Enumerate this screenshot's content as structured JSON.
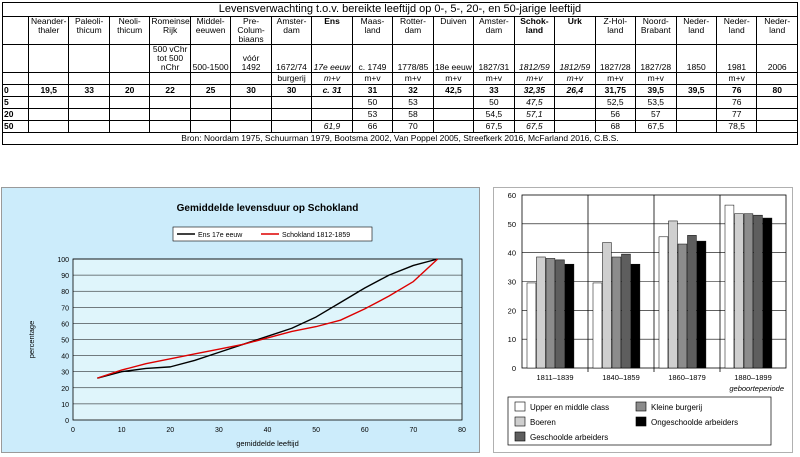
{
  "table": {
    "title": "Levensverwachting t.o.v. bereikte leeftijd op 0-, 5-, 20-, en 50-jarige leeftijd",
    "columns": [
      {
        "head": "Neander-thaler",
        "sub": "",
        "unit": "",
        "style": ""
      },
      {
        "head": "Paleoli-thicum",
        "sub": "",
        "unit": "",
        "style": ""
      },
      {
        "head": "Neoli-thicum",
        "sub": "",
        "unit": "",
        "style": ""
      },
      {
        "head": "Romeinse Rijk",
        "sub": "500 vChr tot 500 nChr",
        "unit": "",
        "style": ""
      },
      {
        "head": "Middel-eeuwen",
        "sub": "500-1500",
        "unit": "",
        "style": ""
      },
      {
        "head": "Pre-Colum-biaans",
        "sub": "vóór 1492",
        "unit": "",
        "style": ""
      },
      {
        "head": "Amster-dam",
        "sub": "1672/74",
        "unit": "burgerij",
        "style": ""
      },
      {
        "head": "Ens",
        "sub": "17e eeuw",
        "unit": "m+v",
        "style": "bold",
        "substyle": "italic",
        "unitstyle": "italic"
      },
      {
        "head": "Maas-land",
        "sub": "c. 1749",
        "unit": "m+v",
        "style": ""
      },
      {
        "head": "Rotter-dam",
        "sub": "1778/85",
        "unit": "m+v",
        "style": ""
      },
      {
        "head": "Duiven",
        "sub": "18e eeuw",
        "unit": "m+v",
        "style": ""
      },
      {
        "head": "Amster-dam",
        "sub": "1827/31",
        "unit": "m+v",
        "style": ""
      },
      {
        "head": "Schok-land",
        "sub": "1812/59",
        "unit": "m+v",
        "style": "bold",
        "substyle": "italic",
        "unitstyle": "italic"
      },
      {
        "head": "Urk",
        "sub": "1812/59",
        "unit": "m+v",
        "style": "bold",
        "substyle": "italic",
        "unitstyle": "italic"
      },
      {
        "head": "Z-Hol-land",
        "sub": "1827/28",
        "unit": "m+v",
        "style": ""
      },
      {
        "head": "Noord-Brabant",
        "sub": "1827/28",
        "unit": "m+v",
        "style": ""
      },
      {
        "head": "Neder-land",
        "sub": "1850",
        "unit": "",
        "style": ""
      },
      {
        "head": "Neder-land",
        "sub": "1981",
        "unit": "m+v",
        "style": ""
      },
      {
        "head": "Neder-land",
        "sub": "2006",
        "unit": "",
        "style": ""
      }
    ],
    "rows": [
      {
        "label": "0",
        "cells": [
          "19,5",
          "33",
          "20",
          "22",
          "25",
          "30",
          "30",
          "c. 31",
          "31",
          "32",
          "42,5",
          "33",
          "32,35",
          "26,4",
          "31,75",
          "39,5",
          "39,5",
          "76",
          "80"
        ]
      },
      {
        "label": "5",
        "cells": [
          "",
          "",
          "",
          "",
          "",
          "",
          "",
          "",
          "50",
          "53",
          "",
          "50",
          "47,5",
          "",
          "52,5",
          "53,5",
          "",
          "76",
          ""
        ]
      },
      {
        "label": "20",
        "cells": [
          "",
          "",
          "",
          "",
          "",
          "",
          "",
          "",
          "53",
          "58",
          "",
          "54,5",
          "57,1",
          "",
          "56",
          "57",
          "",
          "77",
          ""
        ]
      },
      {
        "label": "50",
        "cells": [
          "",
          "",
          "",
          "",
          "",
          "",
          "",
          "61,9",
          "66",
          "70",
          "",
          "67,5",
          "67,5",
          "",
          "68",
          "67,5",
          "",
          "78,5",
          ""
        ]
      }
    ],
    "source": "Bron: Noordam 1975, Schuurman 1979, Bootsma 2002, Van Poppel 2005, Streefkerk 2016, McFarland 2016, C.B.S."
  },
  "chart_data": [
    {
      "type": "line",
      "title": "Gemiddelde levensduur op Schokland",
      "xlabel": "gemiddelde leeftijd",
      "ylabel": "percentage",
      "xlim": [
        0,
        80
      ],
      "ylim": [
        0,
        100
      ],
      "xticks": [
        0,
        10,
        20,
        30,
        40,
        50,
        60,
        70,
        80
      ],
      "yticks": [
        0,
        10,
        20,
        30,
        40,
        50,
        60,
        70,
        80,
        90,
        100
      ],
      "grid": true,
      "legend": "top-right",
      "series": [
        {
          "name": "Ens 17e eeuw",
          "color": "#000000",
          "x": [
            5,
            10,
            15,
            20,
            25,
            30,
            35,
            40,
            45,
            50,
            55,
            60,
            65,
            70,
            75
          ],
          "y": [
            26,
            30,
            32,
            33,
            37,
            42,
            47,
            52,
            57,
            64,
            73,
            82,
            90,
            96,
            100
          ]
        },
        {
          "name": "Schokland 1812-1859",
          "color": "#dd0000",
          "x": [
            5,
            10,
            15,
            20,
            25,
            30,
            35,
            40,
            45,
            50,
            55,
            60,
            65,
            70,
            75
          ],
          "y": [
            26,
            31,
            35,
            38,
            41,
            44,
            47,
            51,
            55,
            58,
            62,
            69,
            77,
            86,
            100
          ]
        }
      ]
    },
    {
      "type": "bar",
      "categories": [
        "1811–1839",
        "1840–1859",
        "1860–1879",
        "1880–1899"
      ],
      "xlabel": "geboorteperiode",
      "ylim": [
        0,
        60
      ],
      "yticks": [
        0,
        10,
        20,
        30,
        40,
        50,
        60
      ],
      "legend": "bottom",
      "series": [
        {
          "name": "Upper en middle class",
          "color": "#ffffff",
          "values": [
            29.5,
            29.5,
            45.5,
            56.5
          ]
        },
        {
          "name": "Boeren",
          "color": "#cfcfcf",
          "values": [
            38.5,
            43.5,
            51,
            53.5
          ]
        },
        {
          "name": "Kleine burgerij",
          "color": "#8c8c8c",
          "values": [
            38,
            38.5,
            43,
            53.5
          ]
        },
        {
          "name": "Geschoolde arbeiders",
          "color": "#5e5e5e",
          "values": [
            37.5,
            39.5,
            46,
            53
          ]
        },
        {
          "name": "Ongeschoolde arbeiders",
          "color": "#000000",
          "values": [
            36,
            36,
            44,
            52
          ]
        }
      ],
      "legend_order": [
        0,
        2,
        1,
        4,
        3
      ]
    }
  ]
}
